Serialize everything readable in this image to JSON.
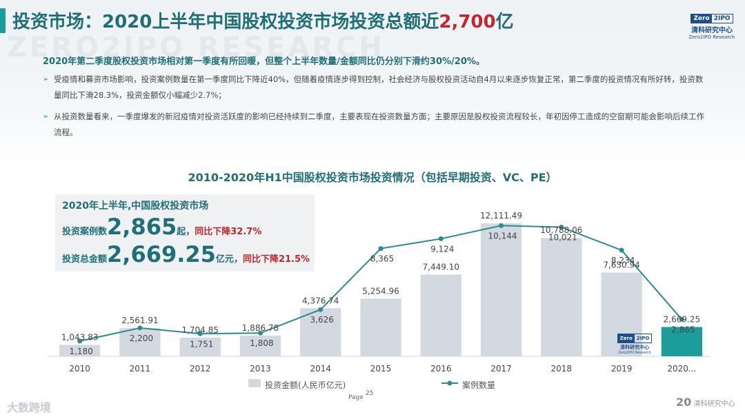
{
  "header": {
    "title_main": "投资市场：2020上半年中国股权投资市场投资总额近",
    "title_accent": "2,700",
    "title_tail": "亿",
    "watermark": "ZERO2IPO RESEARCH",
    "logo_part1": "Zero",
    "logo_part2": "2IPO",
    "logo_cn": "清科研究中心",
    "logo_en": "Zero2IPO Research"
  },
  "summary": {
    "headline": "2020年第二季度股权投资市场相对第一季度有所回暖，但整个上半年数量/金额同比仍分别下滑约30%/20%。",
    "bullets": [
      "受疫情和募资市场影响，投资案例数量在第一季度同比下降近40%，但随着疫情逐步得到控制，社会经济与股权投资活动自4月以来逐步恢复正常，第二季度的投资情况有所好转，投资数量同比下滑28.3%，投资金额仅小幅减少2.7%；",
      "从投资数量看来，一季度爆发的新冠疫情对投资活跃度的影响已经持续到二季度，主要表现在投资数量方面；主要原因是股权投资流程较长，年初因停工造成的空窗期可能会影响后续工作流程。"
    ]
  },
  "highlight": {
    "title": "2020年上半年,中国股权投资市场",
    "count_label": "投资案例数",
    "count_value": "2,865",
    "count_unit": "起，",
    "count_change": "同比下降32.7%",
    "amount_label": "投资总金额",
    "amount_value": "2,669.25",
    "amount_unit": "亿元，",
    "amount_change": "同比下降21.5%"
  },
  "chart_data": {
    "type": "bar+line",
    "title": "2010-2020年H1中国股权投资市场投资情况（包括早期投资、VC、PE）",
    "categories": [
      "2010",
      "2011",
      "2012",
      "2013",
      "2014",
      "2015",
      "2016",
      "2017",
      "2018",
      "2019",
      "2020..."
    ],
    "series": [
      {
        "name": "投资金额(人民币亿元)",
        "kind": "bar",
        "values": [
          1043.83,
          2561.91,
          1704.85,
          1886.78,
          4376.74,
          5254.96,
          7449.1,
          12111.49,
          10788.06,
          7630.94,
          2669.25
        ],
        "labels": [
          "1,043.83",
          "2,561.91",
          "1,704.85",
          "1,886.78",
          "4,376.74",
          "5,254.96",
          "7,449.10",
          "12,111.49",
          "10,788.06",
          "7,630.94",
          "2,669.25"
        ],
        "color": "#d3d9e1",
        "highlight_color": "#1a9d9b",
        "ylim": [
          0,
          13500
        ]
      },
      {
        "name": "案例数量",
        "kind": "line",
        "values": [
          1180,
          2200,
          1751,
          1808,
          3626,
          8365,
          9124,
          10144,
          10021,
          8234,
          2865
        ],
        "labels": [
          "1,180",
          "2,200",
          "1,751",
          "1,808",
          "3,626",
          "8,365",
          "9,124",
          "10,144",
          "10,021",
          "8,234",
          "2,865"
        ],
        "color": "#2a8c93",
        "ylim": [
          0,
          11500
        ]
      }
    ],
    "legend_position": "bottom"
  },
  "inner_logo": {
    "part1": "Zero",
    "part2": "2IPO",
    "cn": "清科研究中心",
    "en": "Zero2IPO Research"
  },
  "footer": {
    "page_label": "Page",
    "page_number": "25",
    "watermark_left": "大数跨境",
    "watermark_right_big": "20",
    "watermark_right_text": "清科研究中心"
  }
}
